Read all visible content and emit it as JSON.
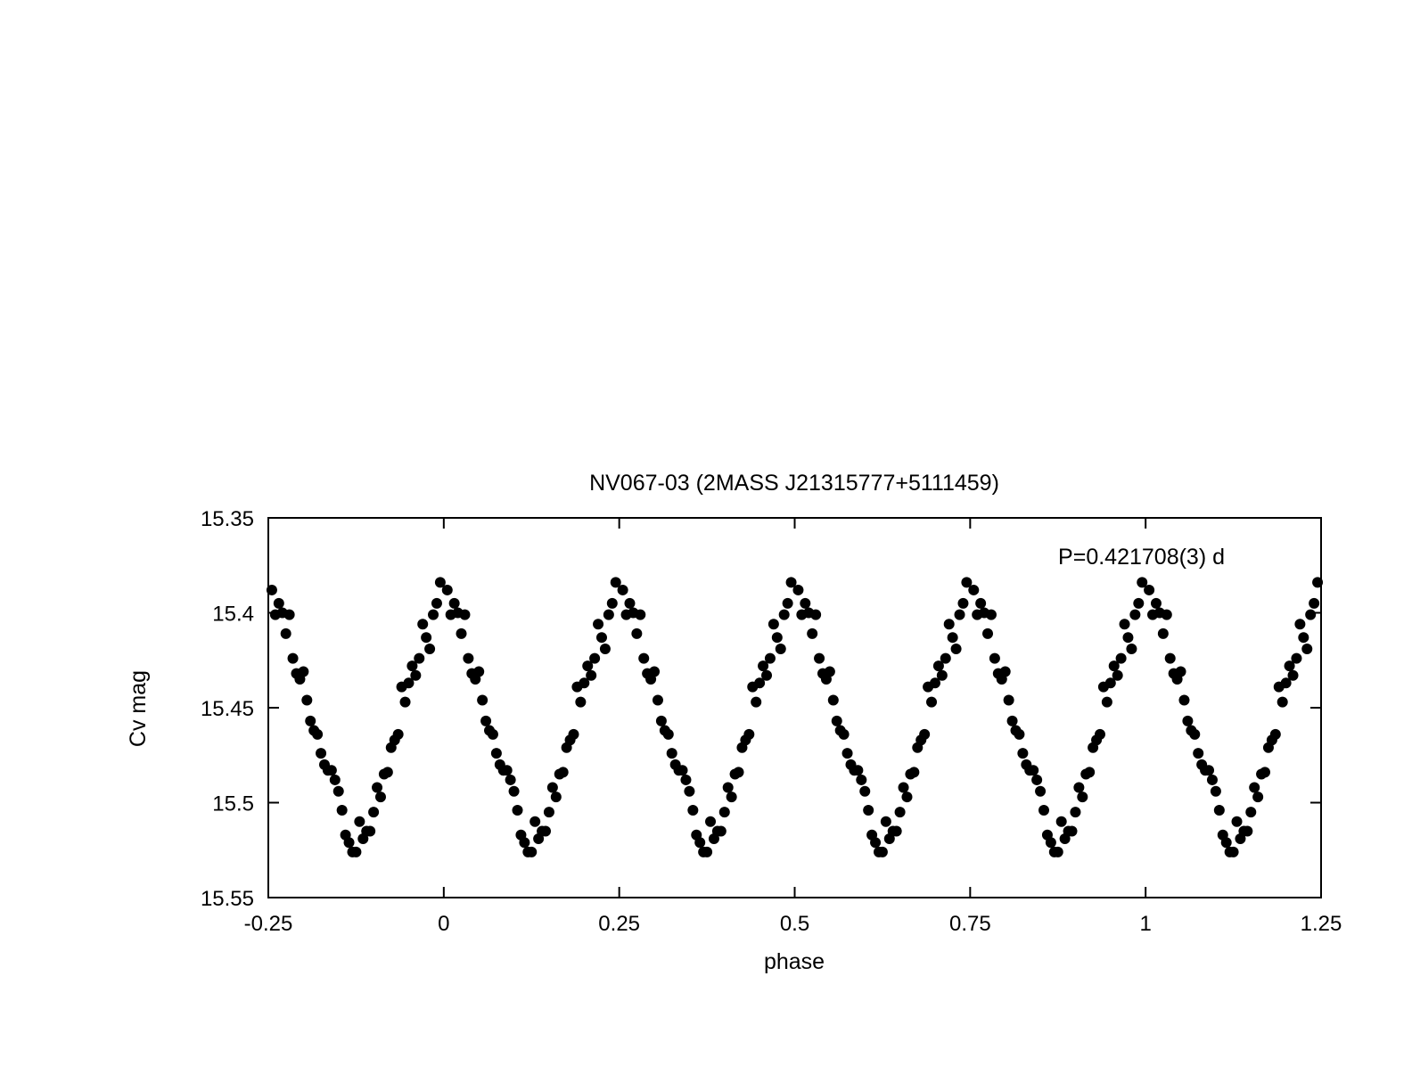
{
  "chart_data": {
    "type": "scatter",
    "title": "NV067-03 (2MASS J21315777+5111459)",
    "annotation": "P=0.421708(3) d",
    "xlabel": "phase",
    "ylabel": "Cv mag",
    "xlim": [
      -0.25,
      1.25
    ],
    "ylim": [
      15.35,
      15.55
    ],
    "y_inverted": true,
    "grid": false,
    "legend": "none",
    "marker_color": "#000000",
    "x_ticks": [
      -0.25,
      0,
      0.25,
      0.5,
      0.75,
      1,
      1.25
    ],
    "x_tick_labels": [
      "-0.25",
      "0",
      "0.25",
      "0.5",
      "0.75",
      "1",
      "1.25"
    ],
    "y_ticks": [
      15.35,
      15.4,
      15.45,
      15.5,
      15.55
    ],
    "y_tick_labels": [
      "15.35",
      "15.4",
      "15.45",
      "15.5",
      "15.55"
    ],
    "points": [
      [
        -0.245,
        15.388
      ],
      [
        -0.24,
        15.401
      ],
      [
        -0.235,
        15.395
      ],
      [
        -0.23,
        15.4
      ],
      [
        -0.225,
        15.411
      ],
      [
        -0.22,
        15.401
      ],
      [
        -0.215,
        15.424
      ],
      [
        -0.21,
        15.432
      ],
      [
        -0.205,
        15.435
      ],
      [
        -0.2,
        15.431
      ],
      [
        -0.195,
        15.446
      ],
      [
        -0.19,
        15.457
      ],
      [
        -0.185,
        15.462
      ],
      [
        -0.18,
        15.464
      ],
      [
        -0.175,
        15.474
      ],
      [
        -0.17,
        15.48
      ],
      [
        -0.165,
        15.483
      ],
      [
        -0.16,
        15.483
      ],
      [
        -0.155,
        15.488
      ],
      [
        -0.15,
        15.494
      ],
      [
        -0.145,
        15.504
      ],
      [
        -0.14,
        15.517
      ],
      [
        -0.135,
        15.521
      ],
      [
        -0.13,
        15.526
      ],
      [
        -0.125,
        15.526
      ],
      [
        -0.12,
        15.51
      ],
      [
        -0.115,
        15.519
      ],
      [
        -0.11,
        15.515
      ],
      [
        -0.105,
        15.515
      ],
      [
        -0.1,
        15.505
      ],
      [
        -0.095,
        15.492
      ],
      [
        -0.09,
        15.497
      ],
      [
        -0.085,
        15.485
      ],
      [
        -0.08,
        15.484
      ],
      [
        -0.075,
        15.471
      ],
      [
        -0.07,
        15.467
      ],
      [
        -0.065,
        15.464
      ],
      [
        -0.06,
        15.439
      ],
      [
        -0.055,
        15.447
      ],
      [
        -0.05,
        15.437
      ],
      [
        -0.045,
        15.428
      ],
      [
        -0.04,
        15.433
      ],
      [
        -0.035,
        15.424
      ],
      [
        -0.03,
        15.406
      ],
      [
        -0.025,
        15.413
      ],
      [
        -0.02,
        15.419
      ],
      [
        -0.015,
        15.401
      ],
      [
        -0.01,
        15.395
      ],
      [
        -0.005,
        15.384
      ],
      [
        0.005,
        15.388
      ],
      [
        0.01,
        15.401
      ],
      [
        0.015,
        15.395
      ],
      [
        0.02,
        15.4
      ],
      [
        0.025,
        15.411
      ],
      [
        0.03,
        15.401
      ],
      [
        0.035,
        15.424
      ],
      [
        0.04,
        15.432
      ],
      [
        0.045,
        15.435
      ],
      [
        0.05,
        15.431
      ],
      [
        0.055,
        15.446
      ],
      [
        0.06,
        15.457
      ],
      [
        0.065,
        15.462
      ],
      [
        0.07,
        15.464
      ],
      [
        0.075,
        15.474
      ],
      [
        0.08,
        15.48
      ],
      [
        0.085,
        15.483
      ],
      [
        0.09,
        15.483
      ],
      [
        0.095,
        15.488
      ],
      [
        0.1,
        15.494
      ],
      [
        0.105,
        15.504
      ],
      [
        0.11,
        15.517
      ],
      [
        0.115,
        15.521
      ],
      [
        0.12,
        15.526
      ],
      [
        0.125,
        15.526
      ],
      [
        0.13,
        15.51
      ],
      [
        0.135,
        15.519
      ],
      [
        0.14,
        15.515
      ],
      [
        0.145,
        15.515
      ],
      [
        0.15,
        15.505
      ],
      [
        0.155,
        15.492
      ],
      [
        0.16,
        15.497
      ],
      [
        0.165,
        15.485
      ],
      [
        0.17,
        15.484
      ],
      [
        0.175,
        15.471
      ],
      [
        0.18,
        15.467
      ],
      [
        0.185,
        15.464
      ],
      [
        0.19,
        15.439
      ],
      [
        0.195,
        15.447
      ],
      [
        0.2,
        15.437
      ],
      [
        0.205,
        15.428
      ],
      [
        0.21,
        15.433
      ],
      [
        0.215,
        15.424
      ],
      [
        0.22,
        15.406
      ],
      [
        0.225,
        15.413
      ],
      [
        0.23,
        15.419
      ],
      [
        0.235,
        15.401
      ],
      [
        0.24,
        15.395
      ],
      [
        0.245,
        15.384
      ],
      [
        0.255,
        15.388
      ],
      [
        0.26,
        15.401
      ],
      [
        0.265,
        15.395
      ],
      [
        0.27,
        15.4
      ],
      [
        0.275,
        15.411
      ],
      [
        0.28,
        15.401
      ],
      [
        0.285,
        15.424
      ],
      [
        0.29,
        15.432
      ],
      [
        0.295,
        15.435
      ],
      [
        0.3,
        15.431
      ],
      [
        0.305,
        15.446
      ],
      [
        0.31,
        15.457
      ],
      [
        0.315,
        15.462
      ],
      [
        0.32,
        15.464
      ],
      [
        0.325,
        15.474
      ],
      [
        0.33,
        15.48
      ],
      [
        0.335,
        15.483
      ],
      [
        0.34,
        15.483
      ],
      [
        0.345,
        15.488
      ],
      [
        0.35,
        15.494
      ],
      [
        0.355,
        15.504
      ],
      [
        0.36,
        15.517
      ],
      [
        0.365,
        15.521
      ],
      [
        0.37,
        15.526
      ],
      [
        0.375,
        15.526
      ],
      [
        0.38,
        15.51
      ],
      [
        0.385,
        15.519
      ],
      [
        0.39,
        15.515
      ],
      [
        0.395,
        15.515
      ],
      [
        0.4,
        15.505
      ],
      [
        0.405,
        15.492
      ],
      [
        0.41,
        15.497
      ],
      [
        0.415,
        15.485
      ],
      [
        0.42,
        15.484
      ],
      [
        0.425,
        15.471
      ],
      [
        0.43,
        15.467
      ],
      [
        0.435,
        15.464
      ],
      [
        0.44,
        15.439
      ],
      [
        0.445,
        15.447
      ],
      [
        0.45,
        15.437
      ],
      [
        0.455,
        15.428
      ],
      [
        0.46,
        15.433
      ],
      [
        0.465,
        15.424
      ],
      [
        0.47,
        15.406
      ],
      [
        0.475,
        15.413
      ],
      [
        0.48,
        15.419
      ],
      [
        0.485,
        15.401
      ],
      [
        0.49,
        15.395
      ],
      [
        0.495,
        15.384
      ]
    ]
  }
}
